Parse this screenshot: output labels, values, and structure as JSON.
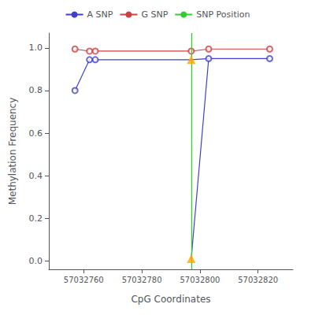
{
  "chart_data": {
    "type": "line",
    "xlabel": "CpG Coordinates",
    "ylabel": "Methylation Frequency",
    "xlim": [
      57032748,
      57032832
    ],
    "ylim": [
      -0.04,
      1.07
    ],
    "xticks": [
      57032760,
      57032780,
      57032800,
      57032820
    ],
    "yticks": [
      {
        "value": 0.0,
        "label": "0.0"
      },
      0.2,
      0.4,
      0.6,
      0.8,
      {
        "value": 1.0,
        "label": "1.0"
      }
    ],
    "grid": false,
    "legend": "top",
    "series": [
      {
        "name": "A SNP",
        "type": "line",
        "color": "#4040cc",
        "marker": "none",
        "x": [
          57032757,
          57032762
        ],
        "values": [
          0.8,
          0.945
        ]
      },
      {
        "name": "A SNP",
        "type": "line",
        "color": "#4040cc",
        "marker": "none",
        "x": [
          57032764,
          57032797,
          57032803,
          57032824
        ],
        "values": [
          0.945,
          0.945,
          0.95,
          0.95
        ]
      },
      {
        "name": "A SNP",
        "type": "line",
        "color": "#4040cc",
        "marker": "none",
        "x": [
          57032797,
          57032803
        ],
        "values": [
          0.01,
          0.95
        ]
      },
      {
        "name": "A SNP",
        "type": "scatter",
        "color": "#4040cc",
        "marker": "open_circle",
        "x": [
          57032757,
          57032762,
          57032764,
          57032803,
          57032824
        ],
        "values": [
          0.8,
          0.945,
          0.945,
          0.95,
          0.95
        ]
      },
      {
        "name": "G SNP",
        "type": "line",
        "color": "#cc4040",
        "marker": "none",
        "x": [
          57032757,
          57032762
        ],
        "values": [
          0.995,
          0.985
        ]
      },
      {
        "name": "G SNP",
        "type": "line",
        "color": "#cc4040",
        "marker": "none",
        "x": [
          57032764,
          57032797,
          57032803,
          57032824
        ],
        "values": [
          0.985,
          0.985,
          0.995,
          0.995
        ]
      },
      {
        "name": "G SNP",
        "type": "scatter",
        "color": "#cc4040",
        "marker": "open_circle",
        "x": [
          57032757,
          57032762,
          57032764,
          57032797,
          57032803,
          57032824
        ],
        "values": [
          0.995,
          0.985,
          0.985,
          0.985,
          0.995,
          0.995
        ]
      },
      {
        "name": "SNP Position",
        "type": "vline",
        "color": "#33cc33",
        "x": 57032797
      },
      {
        "type": "scatter",
        "color": "#ffa500",
        "marker": "triangle",
        "x": [
          57032797,
          57032797
        ],
        "values": [
          0.945,
          0.01
        ]
      }
    ]
  }
}
